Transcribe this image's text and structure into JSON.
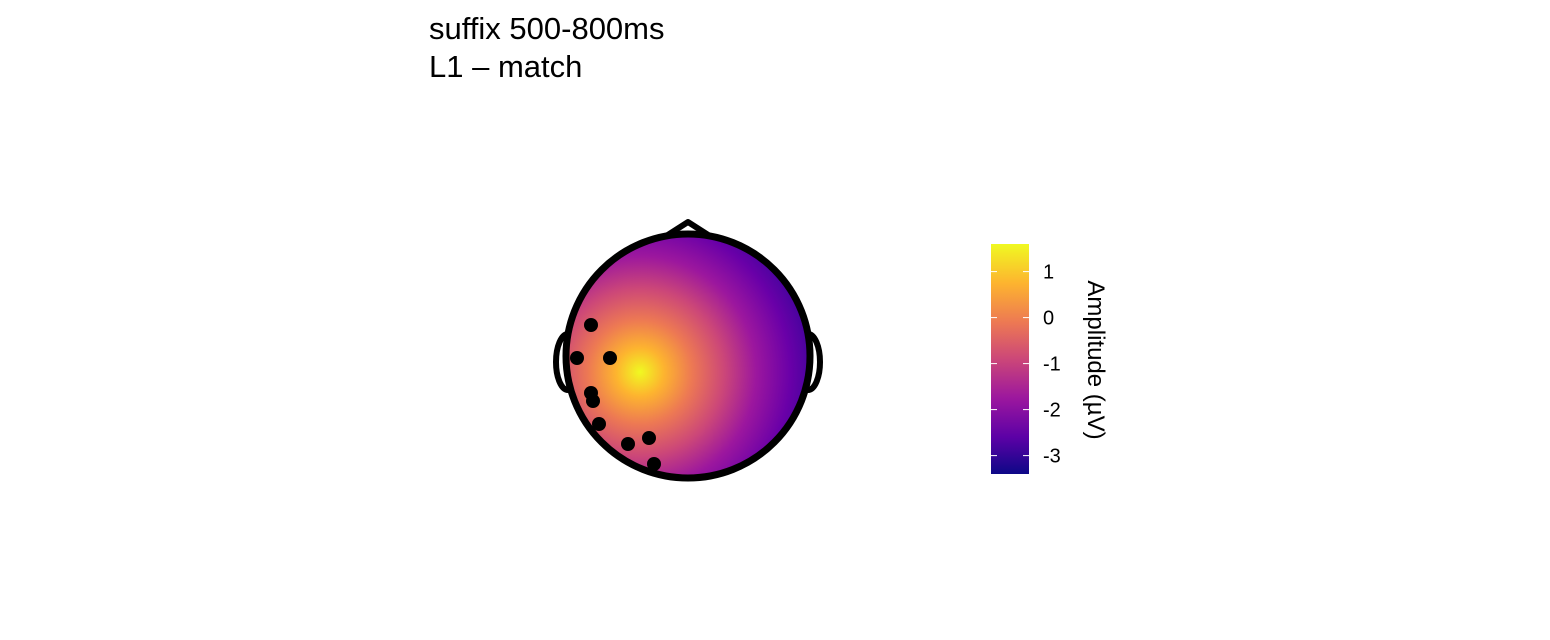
{
  "title": {
    "line1": "suffix 500-800ms",
    "line2": "L1 – match"
  },
  "chart_data": {
    "type": "heatmap",
    "subtype": "scalp-topography",
    "title": "suffix 500-800ms\nL1 – match",
    "electrodes": 10,
    "legend": {
      "title": "Amplitude (µV)",
      "ticks": [
        "1",
        "0",
        "-1",
        "-2",
        "-3"
      ],
      "range": [
        -3.4,
        1.6
      ],
      "colormap": [
        "#0d0887",
        "#5c01a6",
        "#9c179e",
        "#cc4778",
        "#ed7953",
        "#fdb42f",
        "#f0f921"
      ]
    },
    "peak_region": "left-posterior (positive)",
    "minimum_region": "right (negative)"
  }
}
